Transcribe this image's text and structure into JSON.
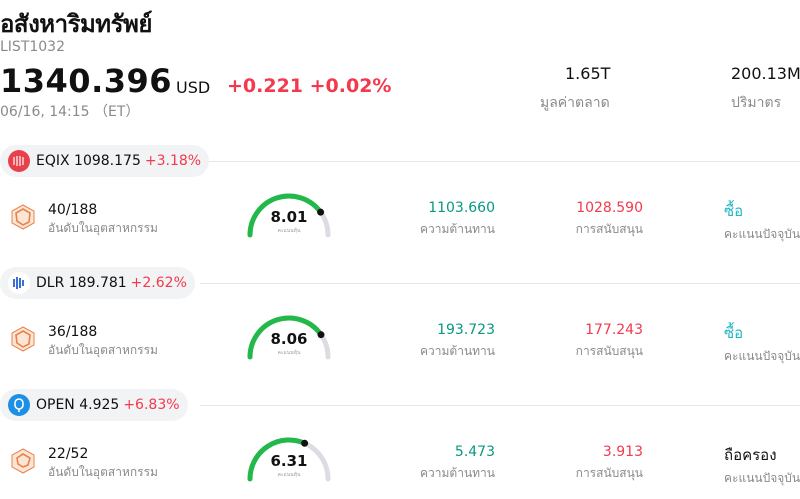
{
  "header": {
    "title": "อสังหาริมทรัพย์",
    "code": "LIST1032",
    "price": "1340.396",
    "currency": "USD",
    "change": "+0.221 +0.02%",
    "time": "06/16, 14:15 （ET）",
    "market_cap_value": "1.65T",
    "market_cap_label": "มูลค่าตลาด",
    "volume_value": "200.13M",
    "volume_label": "ปริมาตร"
  },
  "colors": {
    "up_red": "#f2394e",
    "resistance_green": "#089981",
    "buy_teal": "#20b7c5",
    "gauge_green": "#22b84a"
  },
  "stocks": [
    {
      "ticker": "EQIX",
      "price": "1098.175",
      "change_pct": "+3.18%",
      "logo_icon": "equinix-logo-icon",
      "rank": "40/188",
      "rank_label": "อันดับในอุตสาหกรรม",
      "score": "8.01",
      "score_fraction": 0.801,
      "score_caption": "คะแนนหุ้น",
      "resistance": "1103.660",
      "resistance_label": "ความต้านทาน",
      "support": "1028.590",
      "support_label": "การสนับสนุน",
      "rating": "ซื้อ",
      "rating_label": "คะแนนปัจจุบัน"
    },
    {
      "ticker": "DLR",
      "price": "189.781",
      "change_pct": "+2.62%",
      "logo_icon": "digital-realty-logo-icon",
      "rank": "36/188",
      "rank_label": "อันดับในอุตสาหกรรม",
      "score": "8.06",
      "score_fraction": 0.806,
      "score_caption": "คะแนนหุ้น",
      "resistance": "193.723",
      "resistance_label": "ความต้านทาน",
      "support": "177.243",
      "support_label": "การสนับสนุน",
      "rating": "ซื้อ",
      "rating_label": "คะแนนปัจจุบัน"
    },
    {
      "ticker": "OPEN",
      "price": "4.925",
      "change_pct": "+6.83%",
      "logo_icon": "opendoor-logo-icon",
      "rank": "22/52",
      "rank_label": "อันดับในอุตสาหกรรม",
      "score": "6.31",
      "score_fraction": 0.631,
      "score_caption": "คะแนนหุ้น",
      "resistance": "5.473",
      "resistance_label": "ความต้านทาน",
      "support": "3.913",
      "support_label": "การสนับสนุน",
      "rating": "ถือครอง",
      "rating_label": "คะแนนปัจจุบัน"
    }
  ]
}
